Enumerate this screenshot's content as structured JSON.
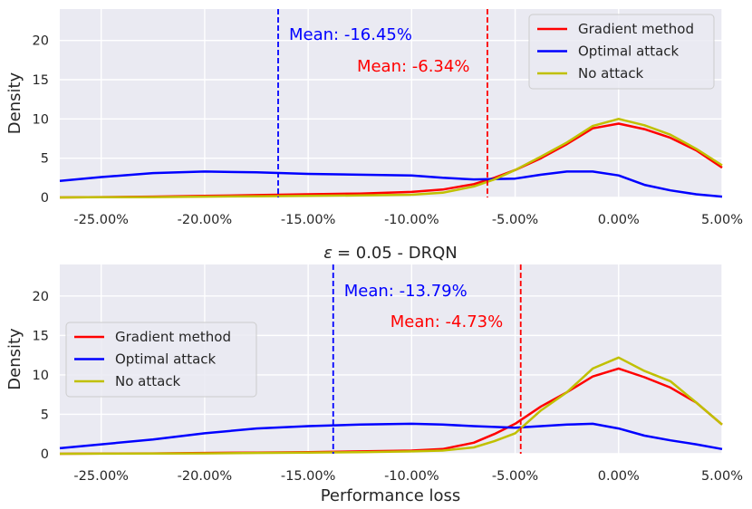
{
  "chart_data": [
    {
      "type": "line",
      "title": "",
      "xlabel": "",
      "ylabel": "Density",
      "xlim": [
        -27,
        5
      ],
      "ylim": [
        0,
        24
      ],
      "x_ticks": [
        -25,
        -20,
        -15,
        -10,
        -5,
        0,
        5
      ],
      "x_tick_labels": [
        "-25.00%",
        "-20.00%",
        "-15.00%",
        "-10.00%",
        "-5.00%",
        "0.00%",
        "5.00%"
      ],
      "y_ticks": [
        0,
        5,
        10,
        15,
        20
      ],
      "y_tick_labels": [
        "0",
        "5",
        "10",
        "15",
        "20"
      ],
      "grid": true,
      "legend_position": "top-right",
      "series": [
        {
          "name": "Gradient method",
          "color": "#ff0000",
          "x": [
            -27,
            -25,
            -22.5,
            -20,
            -17.5,
            -15,
            -12.5,
            -10,
            -8.5,
            -7,
            -6,
            -5,
            -3.75,
            -2.5,
            -1.25,
            0,
            1.25,
            2.5,
            3.75,
            5
          ],
          "y": [
            0,
            0.05,
            0.1,
            0.2,
            0.3,
            0.4,
            0.5,
            0.7,
            1,
            1.7,
            2.5,
            3.5,
            5,
            6.8,
            8.8,
            9.4,
            8.7,
            7.6,
            6,
            3.8
          ]
        },
        {
          "name": "Optimal attack",
          "color": "#0000ff",
          "x": [
            -27,
            -25,
            -22.5,
            -20,
            -17.5,
            -15,
            -12.5,
            -10,
            -8.5,
            -7,
            -5,
            -3.75,
            -2.5,
            -1.25,
            0,
            1.25,
            2.5,
            3.75,
            5
          ],
          "y": [
            2.1,
            2.6,
            3.1,
            3.3,
            3.2,
            3,
            2.9,
            2.8,
            2.5,
            2.3,
            2.4,
            2.9,
            3.3,
            3.3,
            2.8,
            1.6,
            0.9,
            0.4,
            0.1
          ]
        },
        {
          "name": "No attack",
          "color": "#c0c000",
          "x": [
            -27,
            -25,
            -22.5,
            -20,
            -17.5,
            -15,
            -12.5,
            -10,
            -8.5,
            -7,
            -6,
            -5,
            -3.75,
            -2.5,
            -1.25,
            0,
            1.25,
            2.5,
            3.75,
            5
          ],
          "y": [
            0,
            0.02,
            0.05,
            0.1,
            0.15,
            0.2,
            0.25,
            0.35,
            0.6,
            1.4,
            2.3,
            3.5,
            5.2,
            7,
            9.1,
            10,
            9.2,
            8,
            6.2,
            4.1
          ]
        }
      ],
      "vlines": [
        {
          "x": -16.45,
          "color": "#0000ff",
          "label": "Mean: -16.45%"
        },
        {
          "x": -6.34,
          "color": "#ff0000",
          "label": "Mean: -6.34%"
        }
      ]
    },
    {
      "type": "line",
      "title": "ε = 0.05 - DRQN",
      "title_symbol": "ε",
      "title_text": "= 0.05 - DRQN",
      "xlabel": "Performance loss",
      "ylabel": "Density",
      "xlim": [
        -27,
        5
      ],
      "ylim": [
        0,
        24
      ],
      "x_ticks": [
        -25,
        -20,
        -15,
        -10,
        -5,
        0,
        5
      ],
      "x_tick_labels": [
        "-25.00%",
        "-20.00%",
        "-15.00%",
        "-10.00%",
        "-5.00%",
        "0.00%",
        "5.00%"
      ],
      "y_ticks": [
        0,
        5,
        10,
        15,
        20
      ],
      "y_tick_labels": [
        "0",
        "5",
        "10",
        "15",
        "20"
      ],
      "grid": true,
      "legend_position": "center-left",
      "series": [
        {
          "name": "Gradient method",
          "color": "#ff0000",
          "x": [
            -27,
            -25,
            -22.5,
            -20,
            -17.5,
            -15,
            -12.5,
            -10,
            -8.5,
            -7,
            -6,
            -5,
            -3.75,
            -2.5,
            -1.25,
            0,
            1.25,
            2.5,
            3.75,
            5
          ],
          "y": [
            0,
            0.02,
            0.05,
            0.1,
            0.15,
            0.2,
            0.3,
            0.4,
            0.6,
            1.4,
            2.5,
            3.8,
            6,
            7.8,
            9.8,
            10.8,
            9.7,
            8.4,
            6.5,
            3.7
          ]
        },
        {
          "name": "Optimal attack",
          "color": "#0000ff",
          "x": [
            -27,
            -25,
            -22.5,
            -20,
            -17.5,
            -15,
            -12.5,
            -10,
            -8.5,
            -7,
            -5,
            -3.75,
            -2.5,
            -1.25,
            0,
            1.25,
            2.5,
            3.75,
            5
          ],
          "y": [
            0.7,
            1.2,
            1.8,
            2.6,
            3.2,
            3.5,
            3.7,
            3.8,
            3.7,
            3.5,
            3.3,
            3.5,
            3.7,
            3.8,
            3.2,
            2.3,
            1.7,
            1.2,
            0.6
          ]
        },
        {
          "name": "No attack",
          "color": "#c0c000",
          "x": [
            -27,
            -25,
            -22.5,
            -20,
            -17.5,
            -15,
            -12.5,
            -10,
            -8.5,
            -7,
            -6,
            -5,
            -3.75,
            -2.5,
            -1.25,
            0,
            1.25,
            2.5,
            3.75,
            5
          ],
          "y": [
            0,
            0.01,
            0.03,
            0.05,
            0.1,
            0.15,
            0.2,
            0.3,
            0.4,
            0.8,
            1.6,
            2.6,
            5.5,
            7.8,
            10.8,
            12.2,
            10.5,
            9.2,
            6.5,
            3.7
          ]
        }
      ],
      "vlines": [
        {
          "x": -13.79,
          "color": "#0000ff",
          "label": "Mean: -13.79%"
        },
        {
          "x": -4.73,
          "color": "#ff0000",
          "label": "Mean: -4.73%"
        }
      ]
    }
  ]
}
